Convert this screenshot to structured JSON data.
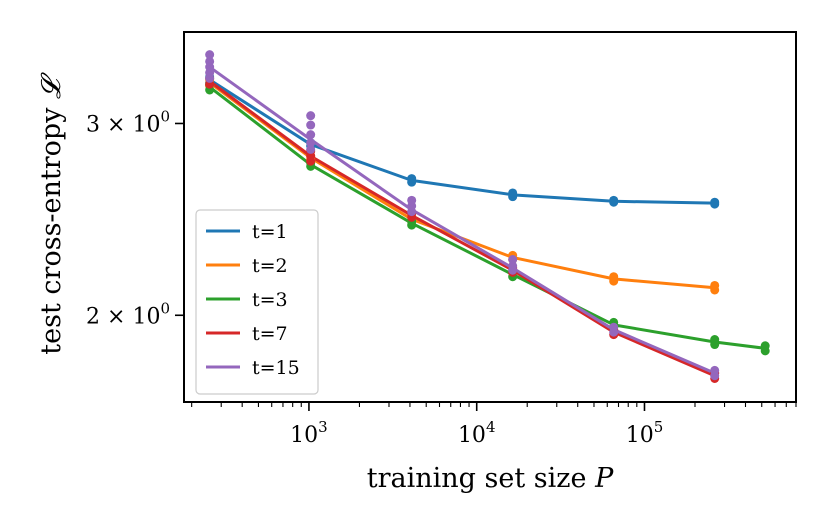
{
  "chart_data": {
    "type": "line",
    "xlabel": "training set size",
    "xlabel_var": "P",
    "ylabel": "test cross-entropy",
    "ylabel_var": "𝓛",
    "xscale": "log",
    "yscale": "log",
    "xlim": [
      180,
      800000
    ],
    "ylim": [
      1.665,
      3.64
    ],
    "xticks": [
      {
        "value": 1000,
        "base": "10",
        "exp": "3"
      },
      {
        "value": 10000,
        "base": "10",
        "exp": "4"
      },
      {
        "value": 100000,
        "base": "10",
        "exp": "5"
      }
    ],
    "yticks": [
      {
        "value": 2,
        "label": "2 × 10",
        "exp": "0"
      },
      {
        "value": 3,
        "label": "3 × 10",
        "exp": "0"
      }
    ],
    "grid": false,
    "legend": {
      "position": "lower-left"
    },
    "series": [
      {
        "name": "t=1",
        "color": "#1f77b4",
        "x": [
          256,
          1024,
          4096,
          16384,
          65536,
          262144
        ],
        "y": [
          3.29,
          2.87,
          2.66,
          2.58,
          2.545,
          2.535
        ],
        "points": [
          [
            256,
            3.27
          ],
          [
            256,
            3.31
          ],
          [
            256,
            3.25
          ],
          [
            1024,
            2.86
          ],
          [
            1024,
            2.88
          ],
          [
            4096,
            2.65
          ],
          [
            4096,
            2.67
          ],
          [
            16384,
            2.57
          ],
          [
            16384,
            2.59
          ],
          [
            65536,
            2.54
          ],
          [
            65536,
            2.55
          ],
          [
            262144,
            2.53
          ],
          [
            262144,
            2.54
          ]
        ]
      },
      {
        "name": "t=2",
        "color": "#ff7f0e",
        "x": [
          256,
          1024,
          4096,
          16384,
          65536,
          262144
        ],
        "y": [
          3.27,
          2.79,
          2.45,
          2.26,
          2.16,
          2.12
        ],
        "points": [
          [
            256,
            3.25
          ],
          [
            256,
            3.29
          ],
          [
            1024,
            2.78
          ],
          [
            1024,
            2.8
          ],
          [
            4096,
            2.44
          ],
          [
            4096,
            2.46
          ],
          [
            16384,
            2.25
          ],
          [
            16384,
            2.27
          ],
          [
            65536,
            2.15
          ],
          [
            65536,
            2.17
          ],
          [
            262144,
            2.11
          ],
          [
            262144,
            2.13
          ]
        ]
      },
      {
        "name": "t=3",
        "color": "#2ca02c",
        "x": [
          256,
          1024,
          4096,
          16384,
          65536,
          262144,
          524288
        ],
        "y": [
          3.24,
          2.75,
          2.43,
          2.18,
          1.96,
          1.89,
          1.865
        ],
        "points": [
          [
            256,
            3.22
          ],
          [
            256,
            3.26
          ],
          [
            1024,
            2.74
          ],
          [
            1024,
            2.76
          ],
          [
            4096,
            2.42
          ],
          [
            4096,
            2.44
          ],
          [
            16384,
            2.17
          ],
          [
            16384,
            2.19
          ],
          [
            65536,
            1.95
          ],
          [
            65536,
            1.97
          ],
          [
            262144,
            1.88
          ],
          [
            262144,
            1.9
          ],
          [
            524288,
            1.855
          ],
          [
            524288,
            1.875
          ]
        ]
      },
      {
        "name": "t=7",
        "color": "#d62728",
        "x": [
          256,
          1024,
          4096,
          16384,
          65536,
          262144
        ],
        "y": [
          3.28,
          2.8,
          2.47,
          2.2,
          1.93,
          1.76
        ],
        "points": [
          [
            256,
            3.26
          ],
          [
            256,
            3.3
          ],
          [
            1024,
            2.77
          ],
          [
            1024,
            2.8
          ],
          [
            1024,
            2.83
          ],
          [
            4096,
            2.46
          ],
          [
            4096,
            2.48
          ],
          [
            16384,
            2.19
          ],
          [
            16384,
            2.21
          ],
          [
            65536,
            1.92
          ],
          [
            65536,
            1.94
          ],
          [
            262144,
            1.75
          ],
          [
            262144,
            1.77
          ]
        ]
      },
      {
        "name": "t=15",
        "color": "#9467bd",
        "x": [
          256,
          1024,
          4096,
          16384,
          65536,
          262144
        ],
        "y": [
          3.38,
          2.9,
          2.5,
          2.21,
          1.94,
          1.77
        ],
        "points": [
          [
            256,
            3.3
          ],
          [
            256,
            3.34
          ],
          [
            256,
            3.38
          ],
          [
            256,
            3.42
          ],
          [
            256,
            3.47
          ],
          [
            1024,
            2.84
          ],
          [
            1024,
            2.88
          ],
          [
            1024,
            2.93
          ],
          [
            1024,
            2.99
          ],
          [
            1024,
            3.05
          ],
          [
            4096,
            2.49
          ],
          [
            4096,
            2.52
          ],
          [
            4096,
            2.55
          ],
          [
            16384,
            2.2
          ],
          [
            16384,
            2.22
          ],
          [
            16384,
            2.25
          ],
          [
            65536,
            1.93
          ],
          [
            65536,
            1.95
          ],
          [
            262144,
            1.76
          ],
          [
            262144,
            1.78
          ]
        ]
      }
    ]
  }
}
